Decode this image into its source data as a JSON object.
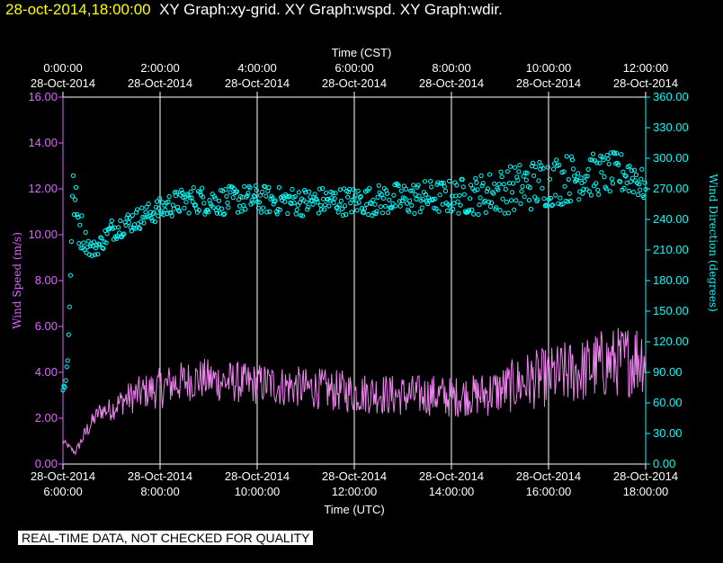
{
  "header": {
    "datetime": "28-oct-2014,18:00:00",
    "graphs": "XY Graph:xy-grid.  XY Graph:wspd.  XY Graph:wdir."
  },
  "disclaimer": "REAL-TIME DATA, NOT CHECKED FOR QUALITY",
  "chart_data": {
    "type": "line",
    "top_axis": {
      "title": "Time (CST)",
      "ticks": [
        {
          "time": "0:00:00",
          "date": "28-Oct-2014"
        },
        {
          "time": "2:00:00",
          "date": "28-Oct-2014"
        },
        {
          "time": "4:00:00",
          "date": "28-Oct-2014"
        },
        {
          "time": "6:00:00",
          "date": "28-Oct-2014"
        },
        {
          "time": "8:00:00",
          "date": "28-Oct-2014"
        },
        {
          "time": "10:00:00",
          "date": "28-Oct-2014"
        },
        {
          "time": "12:00:00",
          "date": "28-Oct-2014"
        }
      ]
    },
    "bottom_axis": {
      "title": "Time (UTC)",
      "ticks": [
        {
          "date": "28-Oct-2014",
          "time": "6:00:00"
        },
        {
          "date": "28-Oct-2014",
          "time": "8:00:00"
        },
        {
          "date": "28-Oct-2014",
          "time": "10:00:00"
        },
        {
          "date": "28-Oct-2014",
          "time": "12:00:00"
        },
        {
          "date": "28-Oct-2014",
          "time": "14:00:00"
        },
        {
          "date": "28-Oct-2014",
          "time": "16:00:00"
        },
        {
          "date": "28-Oct-2014",
          "time": "18:00:00"
        }
      ],
      "range_hours_utc": [
        6,
        18
      ]
    },
    "left_axis": {
      "title": "Wind Speed (m/s)",
      "ticks": [
        "0.00",
        "2.00",
        "4.00",
        "6.00",
        "8.00",
        "10.00",
        "12.00",
        "14.00",
        "16.00"
      ],
      "range": [
        0,
        16
      ],
      "color": "#e066ff"
    },
    "right_axis": {
      "title": "Wind Direction (degrees)",
      "ticks": [
        "0.00",
        "30.00",
        "60.00",
        "90.00",
        "120.00",
        "150.00",
        "180.00",
        "210.00",
        "240.00",
        "270.00",
        "300.00",
        "330.00",
        "360.00"
      ],
      "range": [
        0,
        360
      ],
      "color": "#00ffff"
    },
    "grid": "vertical",
    "series": [
      {
        "type": "line",
        "color": "#ee82ee",
        "axis": "left",
        "x": [
          6.0,
          6.25,
          6.5,
          6.75,
          7.0,
          7.25,
          7.5,
          7.75,
          8.0,
          8.25,
          8.5,
          8.75,
          9.0,
          9.25,
          9.5,
          9.75,
          10.0,
          10.25,
          10.5,
          10.75,
          11.0,
          11.25,
          11.5,
          11.75,
          12.0,
          12.25,
          12.5,
          12.75,
          13.0,
          13.25,
          13.5,
          13.75,
          14.0,
          14.25,
          14.5,
          14.75,
          15.0,
          15.25,
          15.5,
          15.75,
          16.0,
          16.25,
          16.5,
          16.75,
          17.0,
          17.25,
          17.5,
          17.75,
          18.0
        ],
        "values": [
          1.0,
          0.5,
          1.5,
          2.3,
          2.4,
          2.8,
          3.0,
          3.2,
          3.3,
          3.5,
          3.6,
          3.7,
          3.7,
          3.6,
          3.6,
          3.5,
          3.5,
          3.5,
          3.4,
          3.4,
          3.3,
          3.3,
          3.2,
          3.2,
          3.1,
          3.1,
          3.1,
          3.0,
          3.0,
          3.0,
          3.0,
          3.0,
          2.9,
          3.0,
          3.0,
          3.1,
          3.2,
          3.4,
          3.6,
          3.7,
          3.8,
          3.9,
          4.0,
          4.1,
          4.3,
          4.4,
          4.5,
          4.6,
          4.8
        ],
        "noise": [
          0.1,
          0.1,
          0.3,
          0.3,
          0.4,
          0.5,
          0.6,
          0.6,
          0.7,
          0.7,
          0.7,
          0.7,
          0.7,
          0.7,
          0.7,
          0.7,
          0.7,
          0.7,
          0.7,
          0.7,
          0.7,
          0.7,
          0.7,
          0.7,
          0.7,
          0.7,
          0.7,
          0.7,
          0.7,
          0.7,
          0.7,
          0.7,
          0.7,
          0.7,
          0.7,
          0.8,
          0.8,
          0.9,
          1.0,
          1.0,
          1.0,
          1.1,
          1.1,
          1.1,
          1.2,
          1.2,
          1.2,
          1.3,
          1.3
        ]
      },
      {
        "type": "scatter",
        "color": "#00ffff",
        "axis": "right",
        "x": [
          6.0,
          6.1,
          6.2,
          6.3,
          6.45,
          6.6,
          6.75,
          7.0,
          7.25,
          7.5,
          7.75,
          8.0,
          8.25,
          8.5,
          8.75,
          9.0,
          9.25,
          9.5,
          9.75,
          10.0,
          10.25,
          10.5,
          10.75,
          11.0,
          11.25,
          11.5,
          11.75,
          12.0,
          12.25,
          12.5,
          12.75,
          13.0,
          13.25,
          13.5,
          13.75,
          14.0,
          14.25,
          14.5,
          14.75,
          15.0,
          15.25,
          15.5,
          15.75,
          16.0,
          16.25,
          16.5,
          16.75,
          17.0,
          17.25,
          17.5,
          17.75,
          18.0
        ],
        "values": [
          70,
          100,
          270,
          240,
          220,
          210,
          215,
          230,
          235,
          240,
          245,
          250,
          255,
          258,
          260,
          258,
          258,
          259,
          260,
          260,
          259,
          258,
          258,
          257,
          258,
          258,
          258,
          258,
          258,
          259,
          260,
          260,
          261,
          262,
          262,
          262,
          263,
          264,
          266,
          268,
          270,
          272,
          275,
          277,
          279,
          281,
          283,
          284,
          285,
          285,
          284,
          270
        ],
        "noise": [
          5,
          10,
          15,
          20,
          8,
          6,
          6,
          8,
          8,
          8,
          8,
          8,
          9,
          9,
          10,
          10,
          10,
          10,
          10,
          10,
          10,
          10,
          10,
          10,
          10,
          10,
          10,
          10,
          10,
          11,
          11,
          12,
          12,
          12,
          12,
          12,
          13,
          14,
          15,
          16,
          17,
          18,
          18,
          18,
          18,
          17,
          16,
          15,
          15,
          15,
          15,
          10
        ]
      }
    ]
  }
}
